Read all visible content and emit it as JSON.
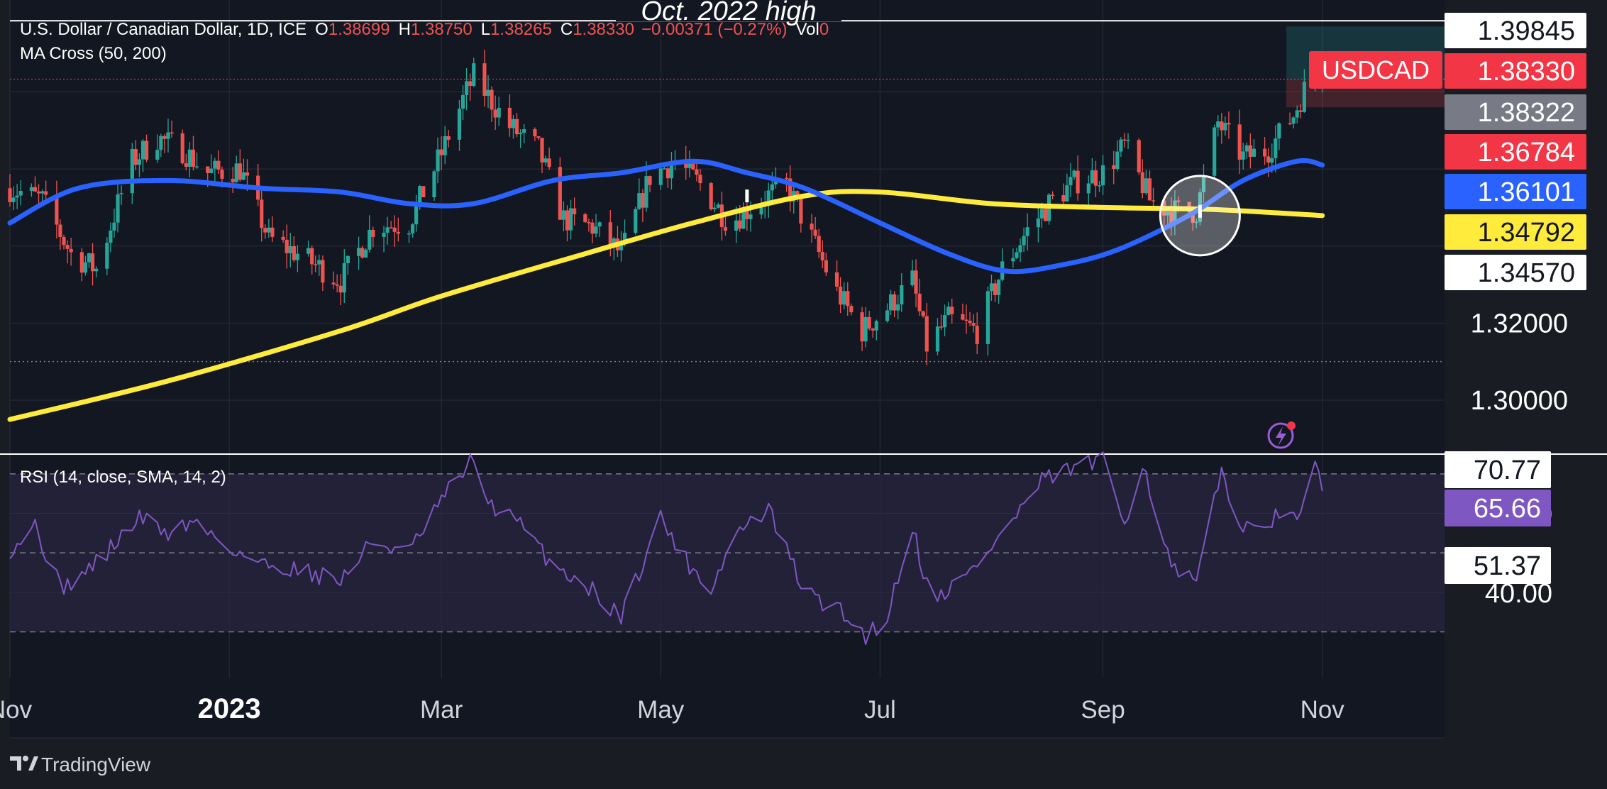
{
  "header": {
    "symbol_title": "U.S. Dollar / Canadian Dollar, 1D, ICE",
    "ohlc": [
      {
        "label": "O",
        "value": "1.38699"
      },
      {
        "label": "H",
        "value": "1.38750"
      },
      {
        "label": "L",
        "value": "1.38265"
      },
      {
        "label": "C",
        "value": "1.38330"
      }
    ],
    "change": "−0.00371 (−0.27%)",
    "volume_label": "Vol",
    "volume_value": "0",
    "ma_indicator": "MA Cross (50, 200)",
    "annotation": "Oct. 2022 high"
  },
  "ticker_badge": "USDCAD",
  "price_axis_labels": [
    {
      "text": "1.39845",
      "bg": "#ffffff",
      "fg": "#131722"
    },
    {
      "text": "1.38330",
      "bg": "#f23645",
      "fg": "#ffffff"
    },
    {
      "text": "1.38322",
      "bg": "#787b86",
      "fg": "#ffffff"
    },
    {
      "text": "1.36784",
      "bg": "#f23645",
      "fg": "#ffffff"
    },
    {
      "text": "1.36101",
      "bg": "#2962ff",
      "fg": "#ffffff"
    },
    {
      "text": "1.34792",
      "bg": "#ffeb3b",
      "fg": "#131722"
    },
    {
      "text": "1.34570",
      "bg": "#ffffff",
      "fg": "#131722"
    }
  ],
  "rsi_panel": {
    "label": "RSI (14, close, SMA, 14, 2)",
    "axis_labels": [
      {
        "text": "70.77",
        "bg": "#ffffff",
        "fg": "#131722"
      },
      {
        "text": "65.66",
        "bg": "#7e57c2",
        "fg": "#ffffff"
      },
      {
        "text": "51.37",
        "bg": "#ffffff",
        "fg": "#131722"
      }
    ]
  },
  "watermark": "TradingView",
  "colors": {
    "background": "#1a1c24",
    "up": "#26a69a",
    "down": "#ef5350",
    "ma50": "#2962ff",
    "ma200": "#ffeb3b",
    "rsi": "#7e57c2",
    "rsi_band": "#2a2640"
  },
  "chart_data": [
    {
      "type": "candlestick",
      "x_ticks": [
        "Nov",
        "2023",
        "Mar",
        "May",
        "Jul",
        "Sep",
        "Nov"
      ],
      "x_range": [
        "2022-11-01",
        "2023-12-05"
      ],
      "y_ticks": [
        1.3,
        1.32
      ],
      "ylim": [
        1.286,
        1.402
      ],
      "hlines": [
        1.39845,
        1.31
      ],
      "grid": true,
      "anchors": [
        {
          "date": "2022-11-01",
          "close": 1.355
        },
        {
          "date": "2022-11-10",
          "close": 1.352
        },
        {
          "date": "2022-11-18",
          "close": 1.338
        },
        {
          "date": "2022-11-25",
          "close": 1.334
        },
        {
          "date": "2022-12-05",
          "close": 1.362
        },
        {
          "date": "2022-12-12",
          "close": 1.368
        },
        {
          "date": "2022-12-19",
          "close": 1.365
        },
        {
          "date": "2022-12-26",
          "close": 1.359
        },
        {
          "date": "2023-01-04",
          "close": 1.36
        },
        {
          "date": "2023-01-12",
          "close": 1.342
        },
        {
          "date": "2023-01-20",
          "close": 1.338
        },
        {
          "date": "2023-02-01",
          "close": 1.331
        },
        {
          "date": "2023-02-10",
          "close": 1.345
        },
        {
          "date": "2023-02-20",
          "close": 1.346
        },
        {
          "date": "2023-03-01",
          "close": 1.364
        },
        {
          "date": "2023-03-07",
          "close": 1.378
        },
        {
          "date": "2023-03-10",
          "close": 1.384
        },
        {
          "date": "2023-03-20",
          "close": 1.371
        },
        {
          "date": "2023-03-28",
          "close": 1.365
        },
        {
          "date": "2023-04-04",
          "close": 1.347
        },
        {
          "date": "2023-04-12",
          "close": 1.345
        },
        {
          "date": "2023-04-20",
          "close": 1.338
        },
        {
          "date": "2023-04-28",
          "close": 1.358
        },
        {
          "date": "2023-05-05",
          "close": 1.362
        },
        {
          "date": "2023-05-12",
          "close": 1.356
        },
        {
          "date": "2023-05-20",
          "close": 1.346
        },
        {
          "date": "2023-05-29",
          "close": 1.352
        },
        {
          "date": "2023-06-05",
          "close": 1.356
        },
        {
          "date": "2023-06-12",
          "close": 1.342
        },
        {
          "date": "2023-06-19",
          "close": 1.328
        },
        {
          "date": "2023-06-26",
          "close": 1.318
        },
        {
          "date": "2023-07-03",
          "close": 1.324
        },
        {
          "date": "2023-07-10",
          "close": 1.331
        },
        {
          "date": "2023-07-14",
          "close": 1.314
        },
        {
          "date": "2023-07-20",
          "close": 1.321
        },
        {
          "date": "2023-07-28",
          "close": 1.318
        },
        {
          "date": "2023-08-04",
          "close": 1.334
        },
        {
          "date": "2023-08-11",
          "close": 1.344
        },
        {
          "date": "2023-08-18",
          "close": 1.352
        },
        {
          "date": "2023-08-25",
          "close": 1.357
        },
        {
          "date": "2023-09-01",
          "close": 1.359
        },
        {
          "date": "2023-09-07",
          "close": 1.366
        },
        {
          "date": "2023-09-14",
          "close": 1.352
        },
        {
          "date": "2023-09-20",
          "close": 1.349
        },
        {
          "date": "2023-09-27",
          "close": 1.349
        },
        {
          "date": "2023-10-03",
          "close": 1.372
        },
        {
          "date": "2023-10-10",
          "close": 1.363
        },
        {
          "date": "2023-10-17",
          "close": 1.365
        },
        {
          "date": "2023-10-24",
          "close": 1.374
        },
        {
          "date": "2023-10-30",
          "close": 1.3869
        },
        {
          "date": "2023-11-01",
          "close": 1.3833
        }
      ],
      "ma50": [
        {
          "date": "2022-11-01",
          "value": 1.346
        },
        {
          "date": "2022-11-20",
          "value": 1.355
        },
        {
          "date": "2022-12-15",
          "value": 1.357
        },
        {
          "date": "2023-01-10",
          "value": 1.355
        },
        {
          "date": "2023-02-01",
          "value": 1.354
        },
        {
          "date": "2023-02-20",
          "value": 1.351
        },
        {
          "date": "2023-03-10",
          "value": 1.351
        },
        {
          "date": "2023-04-01",
          "value": 1.357
        },
        {
          "date": "2023-04-20",
          "value": 1.359
        },
        {
          "date": "2023-05-10",
          "value": 1.362
        },
        {
          "date": "2023-05-25",
          "value": 1.359
        },
        {
          "date": "2023-06-10",
          "value": 1.355
        },
        {
          "date": "2023-07-01",
          "value": 1.346
        },
        {
          "date": "2023-07-20",
          "value": 1.338
        },
        {
          "date": "2023-08-05",
          "value": 1.3335
        },
        {
          "date": "2023-08-20",
          "value": 1.335
        },
        {
          "date": "2023-09-05",
          "value": 1.339
        },
        {
          "date": "2023-09-25",
          "value": 1.348
        },
        {
          "date": "2023-10-10",
          "value": 1.357
        },
        {
          "date": "2023-10-25",
          "value": 1.362
        },
        {
          "date": "2023-11-01",
          "value": 1.361
        }
      ],
      "ma200": [
        {
          "date": "2022-11-01",
          "value": 1.295
        },
        {
          "date": "2022-12-15",
          "value": 1.305
        },
        {
          "date": "2023-02-01",
          "value": 1.318
        },
        {
          "date": "2023-03-01",
          "value": 1.327
        },
        {
          "date": "2023-04-10",
          "value": 1.338
        },
        {
          "date": "2023-05-10",
          "value": 1.346
        },
        {
          "date": "2023-06-10",
          "value": 1.353
        },
        {
          "date": "2023-07-01",
          "value": 1.354
        },
        {
          "date": "2023-08-01",
          "value": 1.351
        },
        {
          "date": "2023-09-01",
          "value": 1.35
        },
        {
          "date": "2023-10-01",
          "value": 1.3495
        },
        {
          "date": "2023-11-01",
          "value": 1.3479
        }
      ],
      "last_close": 1.3833,
      "crossovers": [
        {
          "date": "2023-05-25",
          "value": 1.353
        },
        {
          "date": "2023-09-28",
          "value": 1.349
        }
      ],
      "highlight": {
        "date": "2023-09-28",
        "value": 1.349
      }
    },
    {
      "type": "line",
      "title": "RSI (14, close, SMA, 14, 2)",
      "y_ticks": [
        40,
        60
      ],
      "ylim": [
        22,
        75
      ],
      "bands": [
        30,
        70
      ],
      "midline": 50,
      "series": [
        {
          "points": [
            {
              "date": "2022-11-01",
              "value": 51
            },
            {
              "date": "2022-11-08",
              "value": 57
            },
            {
              "date": "2022-11-15",
              "value": 41
            },
            {
              "date": "2022-11-22",
              "value": 45
            },
            {
              "date": "2022-11-30",
              "value": 52
            },
            {
              "date": "2022-12-07",
              "value": 59
            },
            {
              "date": "2022-12-15",
              "value": 55
            },
            {
              "date": "2022-12-22",
              "value": 58
            },
            {
              "date": "2023-01-02",
              "value": 51
            },
            {
              "date": "2023-01-10",
              "value": 47
            },
            {
              "date": "2023-01-20",
              "value": 46
            },
            {
              "date": "2023-02-01",
              "value": 43
            },
            {
              "date": "2023-02-10",
              "value": 53
            },
            {
              "date": "2023-02-20",
              "value": 50
            },
            {
              "date": "2023-03-01",
              "value": 63
            },
            {
              "date": "2023-03-09",
              "value": 73
            },
            {
              "date": "2023-03-15",
              "value": 62
            },
            {
              "date": "2023-03-22",
              "value": 58
            },
            {
              "date": "2023-04-01",
              "value": 47
            },
            {
              "date": "2023-04-10",
              "value": 42
            },
            {
              "date": "2023-04-20",
              "value": 34
            },
            {
              "date": "2023-05-01",
              "value": 59
            },
            {
              "date": "2023-05-08",
              "value": 48
            },
            {
              "date": "2023-05-15",
              "value": 41
            },
            {
              "date": "2023-05-22",
              "value": 55
            },
            {
              "date": "2023-05-31",
              "value": 61
            },
            {
              "date": "2023-06-10",
              "value": 40
            },
            {
              "date": "2023-06-20",
              "value": 35
            },
            {
              "date": "2023-06-27",
              "value": 29
            },
            {
              "date": "2023-07-03",
              "value": 34
            },
            {
              "date": "2023-07-10",
              "value": 57
            },
            {
              "date": "2023-07-15",
              "value": 38
            },
            {
              "date": "2023-07-25",
              "value": 44
            },
            {
              "date": "2023-08-05",
              "value": 56
            },
            {
              "date": "2023-08-15",
              "value": 68
            },
            {
              "date": "2023-08-25",
              "value": 72
            },
            {
              "date": "2023-09-01",
              "value": 73
            },
            {
              "date": "2023-09-07",
              "value": 58
            },
            {
              "date": "2023-09-12",
              "value": 73
            },
            {
              "date": "2023-09-20",
              "value": 46
            },
            {
              "date": "2023-09-27",
              "value": 42
            },
            {
              "date": "2023-10-04",
              "value": 71
            },
            {
              "date": "2023-10-10",
              "value": 55
            },
            {
              "date": "2023-10-17",
              "value": 59
            },
            {
              "date": "2023-10-24",
              "value": 58
            },
            {
              "date": "2023-10-30",
              "value": 71
            },
            {
              "date": "2023-11-01",
              "value": 65.66
            }
          ]
        }
      ]
    }
  ]
}
